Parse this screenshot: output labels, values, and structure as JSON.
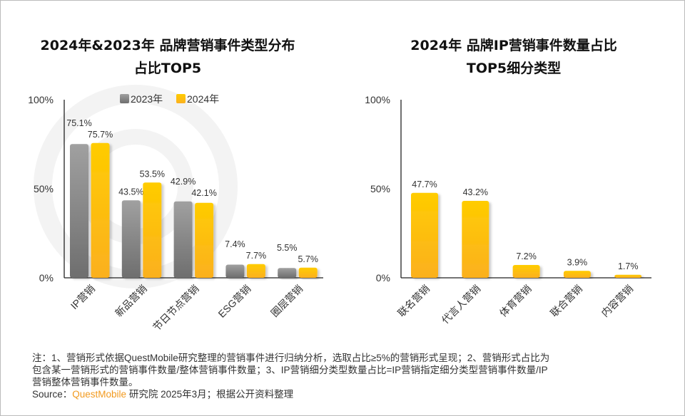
{
  "chart_data": [
    {
      "type": "bar",
      "title": "2024年&2023年 品牌营销事件类型分布\n占比TOP5",
      "title_lines": [
        "2024年&2023年 品牌营销事件类型分布",
        "占比TOP5"
      ],
      "categories": [
        "IP营销",
        "新品营销",
        "节日节点营销",
        "ESG营销",
        "圈层营销"
      ],
      "series": [
        {
          "name": "2023年",
          "values": [
            75.1,
            43.5,
            42.9,
            7.4,
            5.5
          ],
          "color": "#8a8a8a"
        },
        {
          "name": "2024年",
          "values": [
            75.7,
            53.5,
            42.1,
            7.7,
            5.7
          ],
          "color": "#fcbf0a"
        }
      ],
      "labels": [
        [
          "75.1%",
          "43.5%",
          "42.9%",
          "7.4%",
          "5.5%"
        ],
        [
          "75.7%",
          "53.5%",
          "42.1%",
          "7.7%",
          "5.7%"
        ]
      ],
      "yticks": [
        "0%",
        "50%",
        "100%"
      ],
      "ylim": [
        0,
        100
      ],
      "legend": "top",
      "grid": false
    },
    {
      "type": "bar",
      "title_lines": [
        "2024年 品牌IP营销事件数量占比",
        "TOP5细分类型"
      ],
      "categories": [
        "联名营销",
        "代言人营销",
        "体育营销",
        "联合营销",
        "内容营销"
      ],
      "values": [
        47.7,
        43.2,
        7.2,
        3.9,
        1.7
      ],
      "labels": [
        "47.7%",
        "43.2%",
        "7.2%",
        "3.9%",
        "1.7%"
      ],
      "color": "#fcbf0a",
      "yticks": [
        "0%",
        "50%",
        "100%"
      ],
      "ylim": [
        0,
        100
      ],
      "grid": false
    }
  ],
  "notes": {
    "line1": "注：1、营销形式依据QuestMobile研究整理的营销事件进行归纳分析，选取占比≥5%的营销形式呈现；2、营销形式占比为",
    "line2": "包含某一营销形式的营销事件数量/整体营销事件数量；3、IP营销细分类型数量占比=IP营销指定细分类型营销事件数量/IP",
    "line3": "营销整体营销事件数量。",
    "source_prefix": "Source：",
    "source_brand": "QuestMobile",
    "source_rest": " 研究院 2025年3月；根据公开资料整理"
  },
  "watermark": "QUESTMOBILE"
}
